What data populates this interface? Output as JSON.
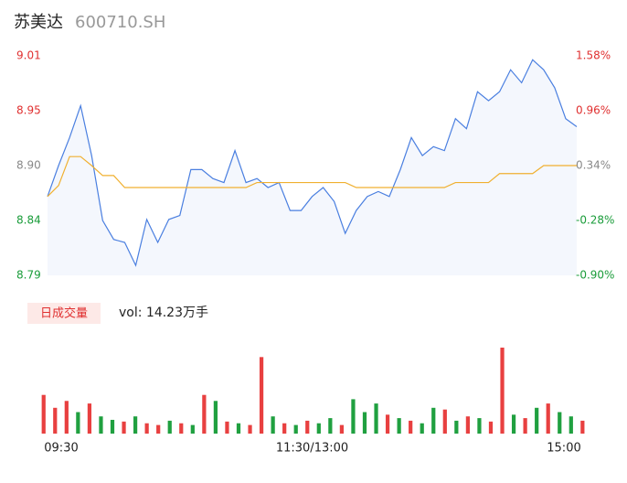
{
  "chart_data": {
    "type": "line",
    "title": "苏美达",
    "subtitle": "600710.SH",
    "xlim": [
      0,
      240
    ],
    "xticks": [
      {
        "value": 0,
        "label": "09:30"
      },
      {
        "value": 120,
        "label": "11:30/13:00"
      },
      {
        "value": 240,
        "label": "15:00"
      }
    ],
    "ylim": [
      8.79,
      9.01
    ],
    "yticks": [
      {
        "value": 8.79,
        "label": "8.79"
      },
      {
        "value": 8.845,
        "label": "8.84"
      },
      {
        "value": 8.9,
        "label": "8.90"
      },
      {
        "value": 8.955,
        "label": "8.95"
      },
      {
        "value": 9.01,
        "label": "9.01"
      }
    ],
    "ytick_colors": [
      "#1a9c3a",
      "#1a9c3a",
      "#888888",
      "#e03030",
      "#e03030"
    ],
    "y2lim": [
      -0.9,
      1.58
    ],
    "y2ticks": [
      {
        "value": -0.9,
        "label": "-0.90%"
      },
      {
        "value": -0.28,
        "label": "-0.28%"
      },
      {
        "value": 0.34,
        "label": "0.34%"
      },
      {
        "value": 0.96,
        "label": "0.96%"
      },
      {
        "value": 1.58,
        "label": "1.58%"
      }
    ],
    "x": [
      0,
      5,
      10,
      15,
      20,
      25,
      30,
      35,
      40,
      45,
      50,
      55,
      60,
      65,
      70,
      75,
      80,
      85,
      90,
      95,
      100,
      105,
      110,
      115,
      120,
      125,
      130,
      135,
      140,
      145,
      150,
      155,
      160,
      165,
      170,
      175,
      180,
      185,
      190,
      195,
      200,
      205,
      210,
      215,
      220,
      225,
      230,
      235,
      240
    ],
    "series": [
      {
        "name": "price",
        "color": "#4a7fe0",
        "values": [
          8.869,
          8.9,
          8.928,
          8.96,
          8.91,
          8.845,
          8.826,
          8.823,
          8.8,
          8.846,
          8.823,
          8.846,
          8.85,
          8.896,
          8.896,
          8.887,
          8.883,
          8.915,
          8.883,
          8.887,
          8.878,
          8.883,
          8.855,
          8.855,
          8.869,
          8.878,
          8.864,
          8.832,
          8.855,
          8.869,
          8.874,
          8.869,
          8.896,
          8.928,
          8.91,
          8.919,
          8.915,
          8.947,
          8.937,
          8.974,
          8.965,
          8.974,
          8.996,
          8.983,
          9.006,
          8.996,
          8.978,
          8.947,
          8.939
        ]
      },
      {
        "name": "average",
        "color": "#f0b030",
        "values": [
          8.869,
          8.88,
          8.909,
          8.909,
          8.9,
          8.89,
          8.89,
          8.878,
          8.878,
          8.878,
          8.878,
          8.878,
          8.878,
          8.878,
          8.878,
          8.878,
          8.878,
          8.878,
          8.878,
          8.883,
          8.883,
          8.883,
          8.883,
          8.883,
          8.883,
          8.883,
          8.883,
          8.883,
          8.878,
          8.878,
          8.878,
          8.878,
          8.878,
          8.878,
          8.878,
          8.878,
          8.878,
          8.883,
          8.883,
          8.883,
          8.883,
          8.892,
          8.892,
          8.892,
          8.892,
          8.9,
          8.9,
          8.9,
          8.9
        ]
      }
    ],
    "volume": {
      "legend": "日成交量",
      "label": "vol: 14.23万手",
      "vlim": [
        0,
        100
      ],
      "values": [
        45,
        30,
        38,
        25,
        35,
        20,
        16,
        14,
        20,
        12,
        10,
        15,
        12,
        10,
        45,
        38,
        14,
        12,
        10,
        89,
        20,
        12,
        10,
        15,
        12,
        18,
        10,
        40,
        25,
        35,
        22,
        18,
        15,
        12,
        30,
        28,
        15,
        20,
        18,
        14,
        100,
        22,
        18,
        30,
        35,
        25,
        20,
        15
      ],
      "colors": [
        "#e84040",
        "#e84040",
        "#e84040",
        "#20a040",
        "#e84040",
        "#20a040",
        "#20a040",
        "#e84040",
        "#20a040",
        "#e84040",
        "#e84040",
        "#20a040",
        "#e84040",
        "#20a040",
        "#e84040",
        "#20a040",
        "#e84040",
        "#20a040",
        "#e84040",
        "#e84040",
        "#20a040",
        "#e84040",
        "#20a040",
        "#e84040",
        "#20a040",
        "#20a040",
        "#e84040",
        "#20a040",
        "#20a040",
        "#20a040",
        "#e84040",
        "#20a040",
        "#e84040",
        "#20a040",
        "#20a040",
        "#e84040",
        "#20a040",
        "#e84040",
        "#20a040",
        "#e84040",
        "#e84040",
        "#20a040",
        "#e84040",
        "#20a040",
        "#e84040",
        "#20a040",
        "#20a040",
        "#e84040"
      ]
    }
  }
}
